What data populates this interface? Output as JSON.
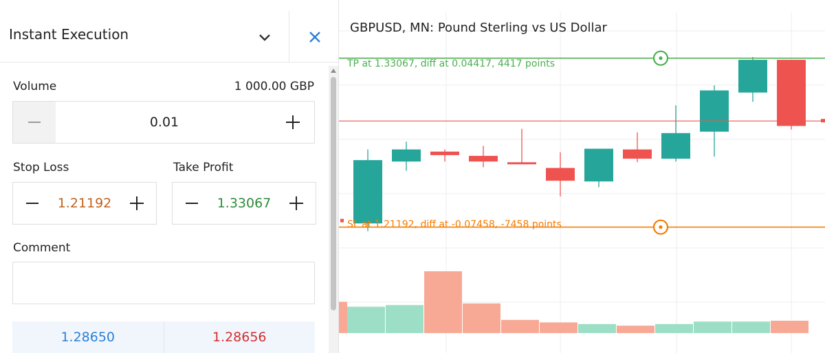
{
  "order_panel": {
    "title": "Instant Execution",
    "volume": {
      "label": "Volume",
      "amount": "1 000.00 GBP",
      "value": "0.01"
    },
    "stop_loss": {
      "label": "Stop Loss",
      "value": "1.21192"
    },
    "take_profit": {
      "label": "Take Profit",
      "value": "1.33067"
    },
    "comment": {
      "label": "Comment",
      "value": ""
    },
    "prices": {
      "sell": "1.28650",
      "buy": "1.28656"
    },
    "icons": {
      "dropdown": "chevron-down-icon",
      "close": "close-icon",
      "minus": "minus-icon",
      "plus": "plus-icon"
    }
  },
  "chart": {
    "title": "GBPUSD, MN: Pound Sterling vs US Dollar",
    "tp_label": "TP at 1.33067, diff at 0.04417, 4417 points",
    "sl_label": "SL at 1.21192, diff at -0.07458, -7458 points",
    "colors": {
      "bull": "#26a69a",
      "bear": "#ef5350",
      "tp": "#4caf50",
      "sl": "#f57c00",
      "vol_bull": "#9ddfc6",
      "vol_bear": "#f8a995"
    }
  },
  "chart_data": {
    "type": "candlestick",
    "price_range": [
      1.205,
      1.345
    ],
    "take_profit": 1.33067,
    "stop_loss": 1.21192,
    "current_price": 1.2865,
    "candles": [
      {
        "o": 1.2145,
        "h": 1.2665,
        "l": 1.209,
        "c": 1.259,
        "dir": "bull"
      },
      {
        "o": 1.258,
        "h": 1.272,
        "l": 1.2515,
        "c": 1.2665,
        "dir": "bull"
      },
      {
        "o": 1.265,
        "h": 1.2665,
        "l": 1.258,
        "c": 1.2625,
        "dir": "bear"
      },
      {
        "o": 1.262,
        "h": 1.269,
        "l": 1.254,
        "c": 1.258,
        "dir": "bear"
      },
      {
        "o": 1.2575,
        "h": 1.281,
        "l": 1.2565,
        "c": 1.257,
        "dir": "bear"
      },
      {
        "o": 1.2535,
        "h": 1.2645,
        "l": 1.2335,
        "c": 1.2445,
        "dir": "bear"
      },
      {
        "o": 1.244,
        "h": 1.267,
        "l": 1.24,
        "c": 1.267,
        "dir": "bull"
      },
      {
        "o": 1.2665,
        "h": 1.2785,
        "l": 1.2575,
        "c": 1.26,
        "dir": "bear"
      },
      {
        "o": 1.26,
        "h": 1.2975,
        "l": 1.258,
        "c": 1.278,
        "dir": "bull"
      },
      {
        "o": 1.279,
        "h": 1.3115,
        "l": 1.2615,
        "c": 1.308,
        "dir": "bull"
      },
      {
        "o": 1.3065,
        "h": 1.3315,
        "l": 1.3,
        "c": 1.3295,
        "dir": "bull"
      },
      {
        "o": 1.3295,
        "h": 1.3295,
        "l": 1.2805,
        "c": 1.283,
        "dir": "bear"
      }
    ],
    "volume_range": [
      0,
      100
    ],
    "volumes": [
      {
        "v": 32,
        "dir": "bull"
      },
      {
        "v": 34,
        "dir": "bull"
      },
      {
        "v": 75,
        "dir": "bear"
      },
      {
        "v": 36,
        "dir": "bear"
      },
      {
        "v": 16,
        "dir": "bear"
      },
      {
        "v": 13,
        "dir": "bear"
      },
      {
        "v": 11,
        "dir": "bull"
      },
      {
        "v": 9,
        "dir": "bear"
      },
      {
        "v": 11,
        "dir": "bull"
      },
      {
        "v": 14,
        "dir": "bull"
      },
      {
        "v": 14,
        "dir": "bull"
      },
      {
        "v": 15,
        "dir": "bear"
      }
    ]
  }
}
